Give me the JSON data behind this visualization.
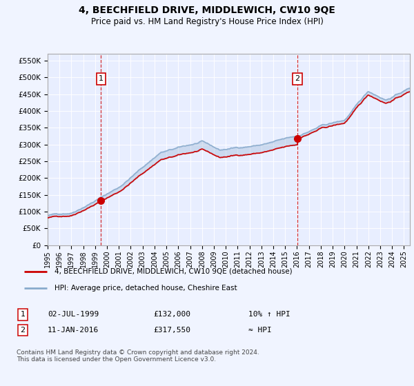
{
  "title": "4, BEECHFIELD DRIVE, MIDDLEWICH, CW10 9QE",
  "subtitle": "Price paid vs. HM Land Registry's House Price Index (HPI)",
  "background_color": "#f0f4ff",
  "plot_bg_color": "#e8eeff",
  "ylabel_ticks": [
    "£0",
    "£50K",
    "£100K",
    "£150K",
    "£200K",
    "£250K",
    "£300K",
    "£350K",
    "£400K",
    "£450K",
    "£500K",
    "£550K"
  ],
  "ytick_values": [
    0,
    50000,
    100000,
    150000,
    200000,
    250000,
    300000,
    350000,
    400000,
    450000,
    500000,
    550000
  ],
  "ylim": [
    0,
    570000
  ],
  "xlim_start": 1995.0,
  "xlim_end": 2025.5,
  "legend_line1": "4, BEECHFIELD DRIVE, MIDDLEWICH, CW10 9QE (detached house)",
  "legend_line2": "HPI: Average price, detached house, Cheshire East",
  "line1_color": "#cc0000",
  "line2_color": "#88aacc",
  "marker1_date": 1999.5,
  "marker1_price": 132000,
  "marker1_label": "1",
  "marker2_date": 2016.04,
  "marker2_price": 317550,
  "marker2_label": "2",
  "footer": "Contains HM Land Registry data © Crown copyright and database right 2024.\nThis data is licensed under the Open Government Licence v3.0.",
  "xtick_years": [
    1995,
    1996,
    1997,
    1998,
    1999,
    2000,
    2001,
    2002,
    2003,
    2004,
    2005,
    2006,
    2007,
    2008,
    2009,
    2010,
    2011,
    2012,
    2013,
    2014,
    2015,
    2016,
    2017,
    2018,
    2019,
    2020,
    2021,
    2022,
    2023,
    2024,
    2025
  ]
}
